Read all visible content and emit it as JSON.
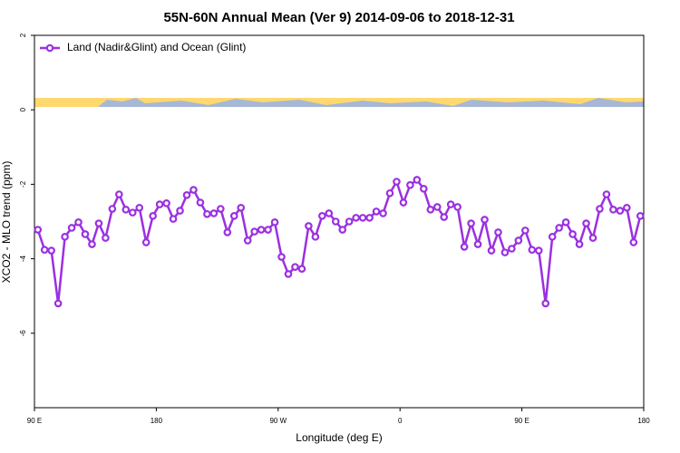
{
  "chart_data": {
    "type": "line",
    "title": "55N-60N Annual Mean (Ver 9)   2014-09-06 to 2018-12-31",
    "x_label": "Longitude (deg E)",
    "y_label": "XCO2 - MLO trend (ppm)",
    "xlim": [
      90,
      540
    ],
    "ylim": [
      -8,
      2
    ],
    "xticks": [
      {
        "value": 90,
        "label": "90 E"
      },
      {
        "value": 180,
        "label": "180"
      },
      {
        "value": 270,
        "label": "90 W"
      },
      {
        "value": 360,
        "label": "0"
      },
      {
        "value": 450,
        "label": "90 E"
      },
      {
        "value": 540,
        "label": "180"
      }
    ],
    "yticks": [
      2,
      0,
      -2,
      -4,
      -6
    ],
    "legend": "top-left",
    "x": [
      92.5,
      97.5,
      102.5,
      107.5,
      112.5,
      117.5,
      122.5,
      127.5,
      132.5,
      137.5,
      142.5,
      147.5,
      152.5,
      157.5,
      162.5,
      167.5,
      172.5,
      177.5,
      182.5,
      187.5,
      192.5,
      197.5,
      202.5,
      207.5,
      212.5,
      217.5,
      222.5,
      227.5,
      232.5,
      237.5,
      242.5,
      247.5,
      252.5,
      257.5,
      262.5,
      267.5,
      272.5,
      277.5,
      282.5,
      287.5,
      292.5,
      297.5,
      302.5,
      307.5,
      312.5,
      317.5,
      322.5,
      327.5,
      332.5,
      337.5,
      342.5,
      347.5,
      352.5,
      357.5,
      362.5,
      367.5,
      372.5,
      377.5,
      382.5,
      387.5,
      392.5,
      397.5,
      402.5,
      407.5,
      412.5,
      417.5,
      422.5,
      427.5,
      432.5,
      437.5,
      442.5,
      447.5,
      452.5,
      457.5,
      462.5,
      467.5,
      472.5,
      477.5,
      482.5,
      487.5,
      492.5,
      497.5,
      502.5,
      507.5,
      512.5,
      517.5,
      522.5,
      527.5,
      532.5,
      537.5
    ],
    "series": [
      {
        "name": "Land (Nadir&Glint) and Ocean (Glint)",
        "color": "#9b30e0",
        "values": [
          -3.22,
          -3.76,
          -3.78,
          -5.2,
          -3.41,
          -3.17,
          -3.02,
          -3.34,
          -3.61,
          -3.05,
          -3.44,
          -2.66,
          -2.27,
          -2.68,
          -2.76,
          -2.63,
          -3.56,
          -2.85,
          -2.54,
          -2.51,
          -2.93,
          -2.71,
          -2.29,
          -2.15,
          -2.49,
          -2.8,
          -2.78,
          -2.66,
          -3.29,
          -2.85,
          -2.63,
          -3.51,
          -3.27,
          -3.22,
          -3.22,
          -3.02,
          -3.95,
          -4.41,
          -4.22,
          -4.27,
          -3.12,
          -3.41,
          -2.85,
          -2.78,
          -3.0,
          -3.22,
          -3.0,
          -2.9,
          -2.9,
          -2.9,
          -2.73,
          -2.78,
          -2.24,
          -1.93,
          -2.49,
          -2.02,
          -1.88,
          -2.12,
          -2.68,
          -2.61,
          -2.88,
          -2.54,
          -2.61,
          -3.68,
          -3.05,
          -3.61,
          -2.95,
          -3.78,
          -3.29,
          -3.83,
          -3.73,
          -3.51,
          -3.24,
          -3.76,
          -3.78,
          -5.2,
          -3.41,
          -3.17,
          -3.02,
          -3.34,
          -3.61,
          -3.05,
          -3.44,
          -2.66,
          -2.27,
          -2.68,
          -2.71,
          -2.63,
          -3.56,
          -2.85
        ]
      }
    ]
  }
}
